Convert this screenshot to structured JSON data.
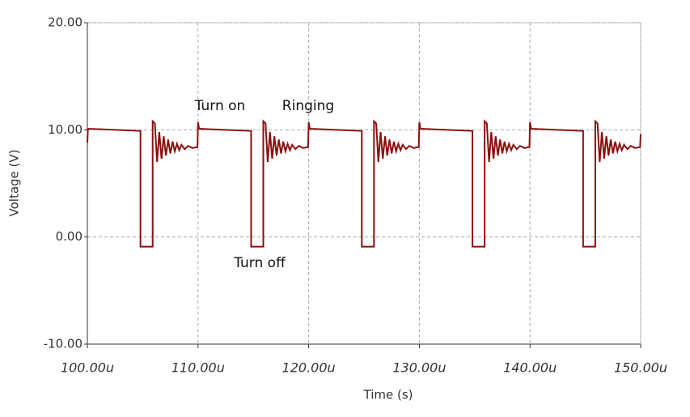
{
  "chart_data": {
    "type": "line",
    "x_label": "Time (s)",
    "y_label": "Voltage (V)",
    "color": "#8b1010",
    "grid": true,
    "xlim": [
      100,
      150
    ],
    "xticks": [
      {
        "value": 100,
        "label": "100.00u"
      },
      {
        "value": 110,
        "label": "110.00u"
      },
      {
        "value": 120,
        "label": "120.00u"
      },
      {
        "value": 130,
        "label": "130.00u"
      },
      {
        "value": 140,
        "label": "140.00u"
      },
      {
        "value": 150,
        "label": "150.00u"
      }
    ],
    "ylim": [
      -10,
      20
    ],
    "yticks": [
      {
        "value": -10,
        "label": "-10.00"
      },
      {
        "value": 0,
        "label": "0.00"
      },
      {
        "value": 10,
        "label": "10.00"
      },
      {
        "value": 20,
        "label": "20.00"
      }
    ],
    "annotations": [
      "Turn on",
      "Ringing",
      "Turn off"
    ],
    "x": [
      100,
      100.05,
      104.8,
      104.8,
      105.9,
      105.9,
      106.1,
      106.3,
      106.5,
      106.7,
      106.9,
      107.1,
      107.3,
      107.5,
      107.7,
      107.9,
      108.1,
      108.3,
      108.5,
      108.8,
      109.1,
      109.5,
      109.95,
      110,
      110.1,
      114.8,
      114.8,
      115.9,
      115.9,
      116.1,
      116.3,
      116.5,
      116.7,
      116.9,
      117.1,
      117.3,
      117.5,
      117.7,
      117.9,
      118.1,
      118.3,
      118.5,
      118.8,
      119.1,
      119.5,
      119.95,
      120,
      120.1,
      124.8,
      124.8,
      125.9,
      125.9,
      126.1,
      126.3,
      126.5,
      126.7,
      126.9,
      127.1,
      127.3,
      127.5,
      127.7,
      127.9,
      128.1,
      128.3,
      128.5,
      128.8,
      129.1,
      129.5,
      129.95,
      130,
      130.1,
      134.8,
      134.8,
      135.9,
      135.9,
      136.1,
      136.3,
      136.5,
      136.7,
      136.9,
      137.1,
      137.3,
      137.5,
      137.7,
      137.9,
      138.1,
      138.3,
      138.5,
      138.8,
      139.1,
      139.5,
      139.95,
      140,
      140.1,
      144.8,
      144.8,
      145.9,
      145.9,
      146.1,
      146.3,
      146.5,
      146.7,
      146.9,
      147.1,
      147.3,
      147.5,
      147.7,
      147.9,
      148.1,
      148.3,
      148.5,
      148.8,
      149.1,
      149.5,
      149.95,
      150
    ],
    "values": [
      8.8,
      10.1,
      9.9,
      -0.9,
      -0.9,
      10.8,
      10.6,
      7.0,
      9.8,
      7.3,
      9.4,
      7.6,
      9.1,
      7.8,
      8.9,
      8.0,
      8.7,
      8.1,
      8.6,
      8.2,
      8.5,
      8.3,
      8.4,
      10.7,
      10.1,
      9.9,
      -0.9,
      -0.9,
      10.8,
      10.6,
      7.0,
      9.8,
      7.3,
      9.4,
      7.6,
      9.1,
      7.8,
      8.9,
      8.0,
      8.7,
      8.1,
      8.6,
      8.2,
      8.5,
      8.3,
      8.4,
      10.7,
      10.1,
      9.9,
      -0.9,
      -0.9,
      10.8,
      10.6,
      7.0,
      9.8,
      7.3,
      9.4,
      7.6,
      9.1,
      7.8,
      8.9,
      8.0,
      8.7,
      8.1,
      8.6,
      8.2,
      8.5,
      8.3,
      8.4,
      10.7,
      10.1,
      9.9,
      -0.9,
      -0.9,
      10.8,
      10.6,
      7.0,
      9.8,
      7.3,
      9.4,
      7.6,
      9.1,
      7.8,
      8.9,
      8.0,
      8.7,
      8.1,
      8.6,
      8.2,
      8.5,
      8.3,
      8.4,
      10.7,
      10.1,
      9.9,
      -0.9,
      -0.9,
      10.8,
      10.6,
      7.0,
      9.8,
      7.3,
      9.4,
      7.6,
      9.1,
      7.8,
      8.9,
      8.0,
      8.7,
      8.1,
      8.6,
      8.2,
      8.5,
      8.3,
      8.4,
      9.6
    ]
  }
}
